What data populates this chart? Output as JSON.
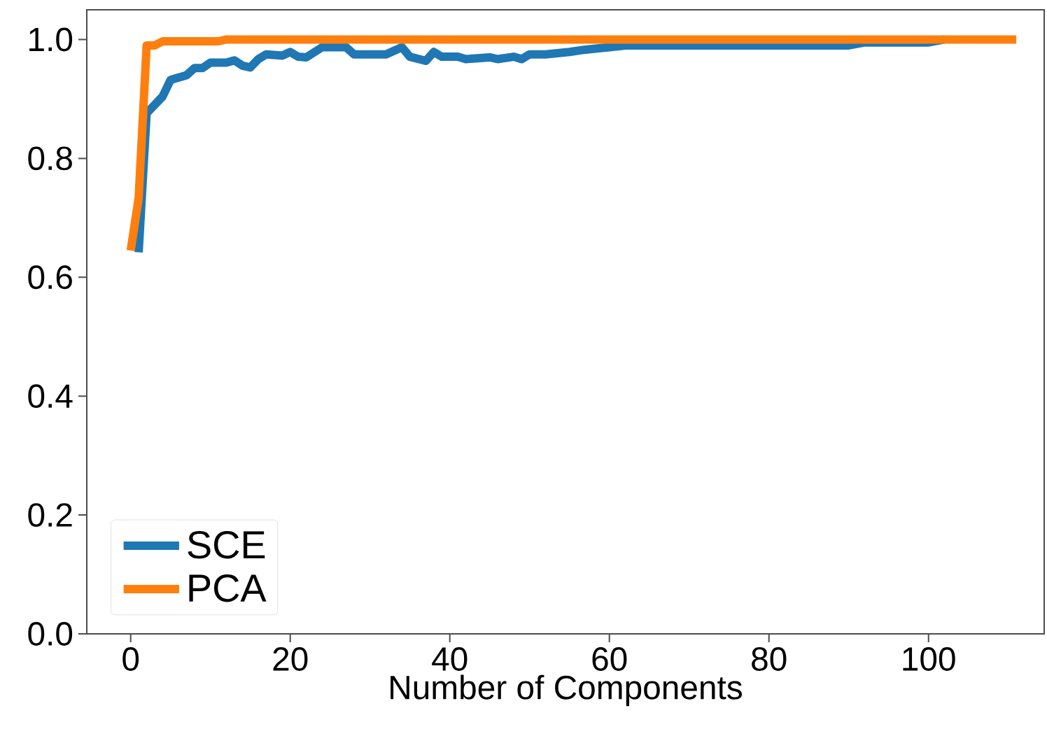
{
  "chart_data": {
    "type": "line",
    "xlabel": "Number of Components",
    "xlim": [
      -5.5,
      114.5
    ],
    "ylim": [
      0,
      1.05
    ],
    "xticks": [
      0,
      20,
      40,
      60,
      80,
      100
    ],
    "yticks": [
      {
        "value": 0,
        "label": "0.0"
      },
      {
        "value": 0.2,
        "label": "0.2"
      },
      {
        "value": 0.4,
        "label": "0.4"
      },
      {
        "value": 0.6,
        "label": "0.6"
      },
      {
        "value": 0.8,
        "label": "0.8"
      },
      {
        "value": 1.0,
        "label": "1.0"
      }
    ],
    "grid": false,
    "legend": "bottom left",
    "series": [
      {
        "name": "SCE",
        "color": "#1f77b4",
        "x": [
          1,
          2,
          4,
          5,
          7,
          8,
          9,
          10,
          12,
          13,
          14,
          15,
          16,
          17,
          19,
          20,
          21,
          22,
          24,
          27,
          28,
          32,
          34,
          35,
          37,
          38,
          39,
          41,
          42,
          45,
          46,
          48,
          49,
          50,
          52,
          55,
          57,
          60,
          62,
          90,
          92,
          100,
          102
        ],
        "values": [
          0.642,
          0.876,
          0.904,
          0.932,
          0.94,
          0.952,
          0.952,
          0.961,
          0.961,
          0.965,
          0.956,
          0.953,
          0.967,
          0.975,
          0.973,
          0.979,
          0.971,
          0.97,
          0.987,
          0.987,
          0.975,
          0.975,
          0.987,
          0.971,
          0.964,
          0.979,
          0.971,
          0.971,
          0.967,
          0.97,
          0.967,
          0.971,
          0.967,
          0.975,
          0.975,
          0.979,
          0.983,
          0.987,
          0.99,
          0.99,
          0.995,
          0.995,
          1.0
        ]
      },
      {
        "name": "PCA",
        "color": "#ff7f0e",
        "x": [
          0,
          1,
          2,
          3,
          4,
          11,
          12,
          111
        ],
        "values": [
          0.645,
          0.733,
          0.99,
          0.99,
          0.997,
          0.997,
          1.0,
          1.0
        ]
      }
    ]
  }
}
